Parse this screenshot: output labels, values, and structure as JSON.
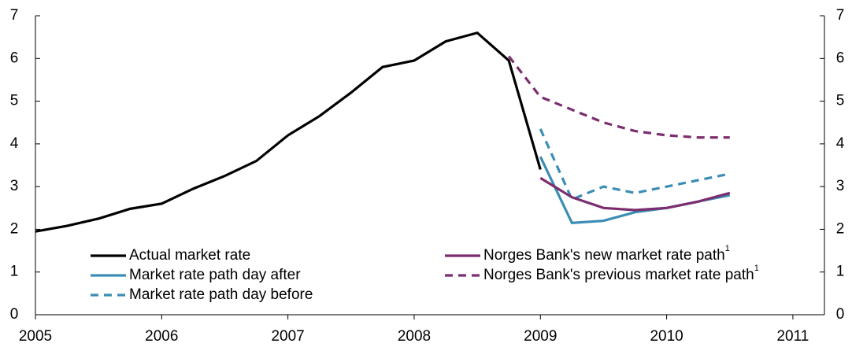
{
  "chart_data": {
    "type": "line",
    "xlim": [
      2005,
      2011.25
    ],
    "xticks": [
      2005,
      2006,
      2007,
      2008,
      2009,
      2010,
      2011
    ],
    "ylim": [
      0,
      7
    ],
    "yticks": [
      0,
      1,
      2,
      3,
      4,
      5,
      6,
      7
    ],
    "y2lim": [
      0,
      7
    ],
    "y2ticks": [
      0,
      1,
      2,
      3,
      4,
      5,
      6,
      7
    ],
    "grid": false,
    "series": [
      {
        "name": "Actual market rate",
        "color": "#000000",
        "dash": false,
        "x": [
          2005,
          2005.25,
          2005.5,
          2005.75,
          2006,
          2006.25,
          2006.5,
          2006.75,
          2007,
          2007.25,
          2007.5,
          2007.75,
          2008,
          2008.25,
          2008.5,
          2008.75,
          2009
        ],
        "values": [
          1.95,
          2.08,
          2.25,
          2.48,
          2.6,
          2.95,
          3.25,
          3.6,
          4.2,
          4.65,
          5.2,
          5.8,
          5.95,
          6.4,
          6.6,
          5.95,
          3.4
        ]
      },
      {
        "name": "Market rate path day after",
        "color": "#3b8db5",
        "dash": false,
        "x": [
          2009,
          2009.25,
          2009.5,
          2009.75,
          2010,
          2010.25,
          2010.5
        ],
        "values": [
          3.7,
          2.15,
          2.2,
          2.4,
          2.5,
          2.65,
          2.8
        ]
      },
      {
        "name": "Market rate path day before",
        "color": "#3b8db5",
        "dash": true,
        "x": [
          2009,
          2009.25,
          2009.5,
          2009.75,
          2010,
          2010.25,
          2010.5
        ],
        "values": [
          4.35,
          2.7,
          3.0,
          2.85,
          3.0,
          3.15,
          3.3
        ]
      },
      {
        "name": "Norges Bank's new market rate path",
        "note": "1",
        "color": "#7b2d6e",
        "dash": false,
        "x": [
          2009,
          2009.25,
          2009.5,
          2009.75,
          2010,
          2010.25,
          2010.5
        ],
        "values": [
          3.2,
          2.75,
          2.5,
          2.45,
          2.5,
          2.65,
          2.85
        ]
      },
      {
        "name": "Norges Bank's previous market rate path",
        "note": "1",
        "color": "#7b2d6e",
        "dash": true,
        "x": [
          2008.75,
          2009,
          2009.25,
          2009.5,
          2009.75,
          2010,
          2010.25,
          2010.5
        ],
        "values": [
          6.05,
          5.1,
          4.8,
          4.5,
          4.3,
          4.2,
          4.15,
          4.15
        ]
      }
    ]
  }
}
